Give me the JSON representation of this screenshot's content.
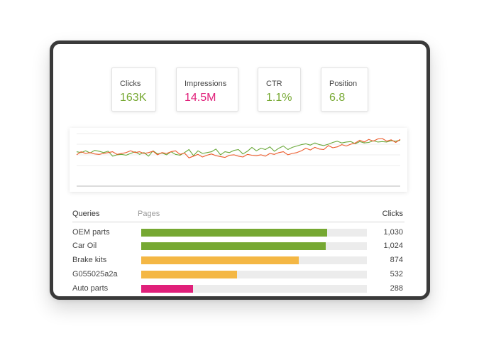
{
  "metrics": [
    {
      "label": "Clicks",
      "value": "163K",
      "color": "#76a832"
    },
    {
      "label": "Impressions",
      "value": "14.5M",
      "color": "#e0207a"
    },
    {
      "label": "CTR",
      "value": "1.1%",
      "color": "#76a832"
    },
    {
      "label": "Position",
      "value": "6.8",
      "color": "#76a832"
    }
  ],
  "chart_data": {
    "type": "line",
    "grid": true,
    "series": [
      {
        "color": "#6aa83a",
        "values": [
          0.38,
          0.4,
          0.36,
          0.41,
          0.35,
          0.37,
          0.4,
          0.37,
          0.48,
          0.45,
          0.44,
          0.46,
          0.42,
          0.38,
          0.44,
          0.4,
          0.48,
          0.36,
          0.43,
          0.41,
          0.45,
          0.38,
          0.44,
          0.46,
          0.4,
          0.33,
          0.47,
          0.36,
          0.42,
          0.4,
          0.38,
          0.32,
          0.45,
          0.38,
          0.4,
          0.35,
          0.33,
          0.43,
          0.37,
          0.28,
          0.36,
          0.3,
          0.33,
          0.27,
          0.37,
          0.3,
          0.25,
          0.33,
          0.28,
          0.25,
          0.22,
          0.2,
          0.23,
          0.18,
          0.22,
          0.24,
          0.21,
          0.17,
          0.14,
          0.18,
          0.16,
          0.15,
          0.2,
          0.15,
          0.18,
          0.17,
          0.13,
          0.16,
          0.15,
          0.16,
          0.13,
          0.14,
          0.12
        ]
      },
      {
        "color": "#ec5a2a",
        "values": [
          0.45,
          0.38,
          0.42,
          0.4,
          0.43,
          0.44,
          0.42,
          0.4,
          0.38,
          0.44,
          0.42,
          0.4,
          0.36,
          0.4,
          0.38,
          0.42,
          0.4,
          0.37,
          0.45,
          0.4,
          0.42,
          0.38,
          0.36,
          0.44,
          0.41,
          0.52,
          0.48,
          0.44,
          0.5,
          0.46,
          0.43,
          0.47,
          0.49,
          0.51,
          0.46,
          0.45,
          0.48,
          0.5,
          0.44,
          0.46,
          0.47,
          0.45,
          0.48,
          0.42,
          0.44,
          0.4,
          0.38,
          0.45,
          0.42,
          0.4,
          0.36,
          0.3,
          0.34,
          0.28,
          0.32,
          0.33,
          0.24,
          0.29,
          0.27,
          0.22,
          0.25,
          0.21,
          0.18,
          0.12,
          0.16,
          0.1,
          0.14,
          0.09,
          0.08,
          0.14,
          0.11,
          0.17,
          0.1
        ]
      }
    ]
  },
  "table": {
    "headers": {
      "queries": "Queries",
      "pages": "Pages",
      "clicks": "Clicks"
    },
    "max_clicks": 1030,
    "bar_full_fraction": 0.823,
    "rows": [
      {
        "query": "OEM parts",
        "clicks": "1,030",
        "value": 1030,
        "color": "#76a832"
      },
      {
        "query": "Car Oil",
        "clicks": "1,024",
        "value": 1024,
        "color": "#76a832"
      },
      {
        "query": "Brake kits",
        "clicks": "874",
        "value": 874,
        "color": "#f4b744"
      },
      {
        "query": "G055025a2a",
        "clicks": "532",
        "value": 532,
        "color": "#f4b744"
      },
      {
        "query": "Auto parts",
        "clicks": "288",
        "value": 288,
        "color": "#e0207a"
      }
    ]
  }
}
